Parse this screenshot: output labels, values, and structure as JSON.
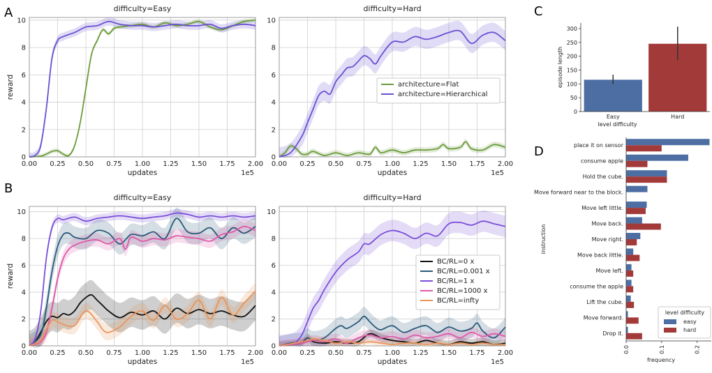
{
  "panel_letters": [
    "A",
    "B",
    "C",
    "D"
  ],
  "colors": {
    "flat": "#6a9a3a",
    "hier": "#6a4fd3",
    "bc0": "#111111",
    "bc0001": "#2a5a7a",
    "bc1": "#7a4fd8",
    "bc1000": "#de5aa8",
    "bcinf": "#e8955a",
    "easy": "#4c6ea3",
    "hard": "#a33a3a"
  },
  "chart_data": [
    {
      "id": "A-easy",
      "type": "line",
      "title": "difficulty=Easy",
      "xlabel": "updates",
      "ylabel": "reward",
      "x_scale_note": "1e5",
      "xlim": [
        0,
        2.0
      ],
      "ylim": [
        0,
        10.2
      ],
      "xticks": [
        "0.00",
        "0.25",
        "0.50",
        "0.75",
        "1.00",
        "1.25",
        "1.50",
        "1.75",
        "2.00"
      ],
      "yticks": [
        "0",
        "2",
        "4",
        "6",
        "8",
        "10"
      ],
      "series": [
        {
          "name": "architecture=Flat",
          "color_key": "flat",
          "band": 0.15,
          "x": [
            0,
            0.1,
            0.15,
            0.2,
            0.25,
            0.3,
            0.35,
            0.4,
            0.45,
            0.5,
            0.55,
            0.6,
            0.65,
            0.7,
            0.75,
            0.8,
            0.9,
            1.0,
            1.1,
            1.2,
            1.3,
            1.4,
            1.5,
            1.6,
            1.7,
            1.8,
            1.9,
            2.0
          ],
          "y": [
            0,
            0.05,
            0.2,
            0.4,
            0.45,
            0.2,
            0.1,
            0.8,
            2.5,
            5.0,
            7.5,
            8.5,
            9.3,
            9.0,
            9.4,
            9.5,
            9.6,
            9.7,
            9.5,
            9.8,
            9.6,
            9.7,
            9.9,
            9.5,
            9.3,
            9.6,
            9.9,
            10.0
          ]
        },
        {
          "name": "architecture=Hierarchical",
          "color_key": "hier",
          "band": 0.3,
          "x": [
            0,
            0.05,
            0.1,
            0.15,
            0.2,
            0.25,
            0.3,
            0.4,
            0.5,
            0.6,
            0.7,
            0.8,
            0.9,
            1.0,
            1.1,
            1.2,
            1.3,
            1.4,
            1.5,
            1.6,
            1.7,
            1.8,
            1.9,
            2.0
          ],
          "y": [
            0,
            0.1,
            0.8,
            3.5,
            7.2,
            8.5,
            8.8,
            9.1,
            9.5,
            9.6,
            9.9,
            9.7,
            9.6,
            9.6,
            9.5,
            9.6,
            9.7,
            9.6,
            9.6,
            9.7,
            9.4,
            9.6,
            9.7,
            9.6
          ]
        }
      ]
    },
    {
      "id": "A-hard",
      "type": "line",
      "title": "difficulty=Hard",
      "xlabel": "updates",
      "ylabel": "",
      "x_scale_note": "1e5",
      "xlim": [
        0,
        2.0
      ],
      "ylim": [
        0,
        10.2
      ],
      "xticks": [
        "0.00",
        "0.25",
        "0.50",
        "0.75",
        "1.00",
        "1.25",
        "1.50",
        "1.75",
        "2.00"
      ],
      "yticks": [
        "0",
        "2",
        "4",
        "6",
        "8",
        "10"
      ],
      "legend": {
        "placement": "center-right",
        "entries": [
          "architecture=Flat",
          "architecture=Hierarchical"
        ]
      },
      "series": [
        {
          "name": "architecture=Flat",
          "color_key": "flat",
          "band": 0.2,
          "x": [
            0,
            0.05,
            0.1,
            0.15,
            0.2,
            0.25,
            0.3,
            0.4,
            0.5,
            0.6,
            0.7,
            0.8,
            0.85,
            0.9,
            1.0,
            1.1,
            1.2,
            1.3,
            1.4,
            1.45,
            1.5,
            1.6,
            1.65,
            1.7,
            1.8,
            1.9,
            2.0
          ],
          "y": [
            0,
            0.3,
            0.8,
            0.6,
            0.2,
            0.2,
            0.4,
            0.1,
            0.3,
            0.1,
            0.3,
            0.2,
            0.7,
            0.3,
            0.5,
            0.3,
            0.5,
            0.5,
            0.6,
            0.9,
            0.6,
            0.7,
            1.1,
            0.6,
            0.5,
            0.9,
            0.7
          ]
        },
        {
          "name": "architecture=Hierarchical",
          "color_key": "hier",
          "band": 0.7,
          "x": [
            0,
            0.1,
            0.2,
            0.25,
            0.3,
            0.35,
            0.4,
            0.45,
            0.5,
            0.55,
            0.6,
            0.65,
            0.7,
            0.75,
            0.8,
            0.85,
            0.9,
            1.0,
            1.1,
            1.2,
            1.3,
            1.4,
            1.5,
            1.6,
            1.7,
            1.8,
            1.9,
            2.0
          ],
          "y": [
            0,
            0.3,
            1.5,
            2.5,
            3.5,
            4.5,
            4.8,
            4.6,
            5.5,
            6.0,
            6.5,
            6.6,
            7.0,
            7.4,
            7.2,
            6.8,
            7.4,
            8.4,
            8.4,
            8.8,
            8.6,
            8.8,
            9.1,
            9.2,
            8.3,
            8.9,
            9.1,
            8.5
          ]
        }
      ]
    },
    {
      "id": "B-easy",
      "type": "line",
      "title": "difficulty=Easy",
      "xlabel": "updates",
      "ylabel": "reward",
      "x_scale_note": "1e5",
      "xlim": [
        0,
        2.0
      ],
      "ylim": [
        0,
        10.4
      ],
      "xticks": [
        "0.00",
        "0.25",
        "0.50",
        "0.75",
        "1.00",
        "1.25",
        "1.50",
        "1.75",
        "2.00"
      ],
      "yticks": [
        "0",
        "2",
        "4",
        "6",
        "8",
        "10"
      ],
      "series": [
        {
          "name": "BC/RL=0 x",
          "color_key": "bc0",
          "band": 1.1,
          "x": [
            0,
            0.05,
            0.1,
            0.15,
            0.2,
            0.25,
            0.3,
            0.35,
            0.4,
            0.45,
            0.5,
            0.55,
            0.6,
            0.65,
            0.7,
            0.8,
            0.9,
            1.0,
            1.1,
            1.2,
            1.3,
            1.4,
            1.5,
            1.6,
            1.7,
            1.8,
            1.9,
            2.0
          ],
          "y": [
            0,
            0.3,
            1.0,
            1.8,
            2.2,
            2.1,
            2.4,
            2.3,
            2.6,
            3.2,
            3.6,
            3.8,
            3.4,
            3.0,
            2.6,
            2.1,
            2.5,
            2.3,
            2.6,
            2.0,
            2.8,
            2.4,
            2.7,
            2.4,
            2.6,
            2.3,
            2.2,
            3.0
          ]
        },
        {
          "name": "BC/RL=0.001 x",
          "color_key": "bc0001",
          "band": 0.8,
          "x": [
            0,
            0.1,
            0.15,
            0.2,
            0.25,
            0.3,
            0.35,
            0.4,
            0.5,
            0.6,
            0.7,
            0.8,
            0.9,
            1.0,
            1.1,
            1.2,
            1.3,
            1.4,
            1.5,
            1.6,
            1.7,
            1.8,
            1.9,
            2.0
          ],
          "y": [
            0,
            0.8,
            2.8,
            5.5,
            7.4,
            8.3,
            8.4,
            8.1,
            8.0,
            8.6,
            8.4,
            7.6,
            8.3,
            8.2,
            8.5,
            8.0,
            9.5,
            8.5,
            8.4,
            8.8,
            8.0,
            8.8,
            8.4,
            8.9
          ]
        },
        {
          "name": "BC/RL=1 x",
          "color_key": "bc1",
          "band": 0.3,
          "x": [
            0,
            0.05,
            0.1,
            0.15,
            0.2,
            0.25,
            0.3,
            0.4,
            0.5,
            0.6,
            0.7,
            0.8,
            0.9,
            1.0,
            1.1,
            1.2,
            1.3,
            1.4,
            1.5,
            1.6,
            1.7,
            1.8,
            1.9,
            2.0
          ],
          "y": [
            0,
            0.5,
            2.5,
            6.5,
            8.8,
            9.5,
            9.4,
            9.6,
            9.3,
            9.5,
            9.6,
            9.7,
            9.6,
            9.5,
            9.6,
            9.7,
            9.9,
            9.8,
            9.6,
            9.7,
            9.6,
            9.7,
            9.6,
            9.7
          ]
        },
        {
          "name": "BC/RL=1000 x",
          "color_key": "bc1000",
          "band": 0.5,
          "x": [
            0,
            0.1,
            0.15,
            0.2,
            0.25,
            0.3,
            0.35,
            0.4,
            0.5,
            0.6,
            0.7,
            0.8,
            0.85,
            0.9,
            1.0,
            1.1,
            1.2,
            1.3,
            1.4,
            1.5,
            1.6,
            1.7,
            1.8,
            1.9,
            2.0
          ],
          "y": [
            0,
            0.3,
            1.0,
            2.8,
            5.0,
            6.5,
            7.2,
            7.5,
            7.8,
            7.9,
            7.6,
            8.0,
            7.2,
            8.1,
            7.8,
            8.0,
            7.9,
            8.2,
            8.1,
            8.0,
            7.8,
            8.3,
            8.5,
            8.9,
            8.6
          ]
        },
        {
          "name": "BC/RL=infty",
          "color_key": "bcinf",
          "band": 0.6,
          "x": [
            0,
            0.1,
            0.15,
            0.2,
            0.25,
            0.3,
            0.4,
            0.5,
            0.6,
            0.65,
            0.7,
            0.8,
            0.9,
            1.0,
            1.1,
            1.2,
            1.3,
            1.4,
            1.5,
            1.6,
            1.7,
            1.8,
            1.9,
            2.0
          ],
          "y": [
            0,
            0.4,
            1.2,
            1.9,
            1.8,
            1.6,
            1.5,
            2.6,
            1.8,
            1.2,
            1.0,
            1.4,
            2.2,
            2.6,
            1.9,
            3.0,
            2.0,
            2.4,
            3.4,
            2.0,
            3.6,
            2.3,
            3.2,
            4.1
          ]
        }
      ]
    },
    {
      "id": "B-hard",
      "type": "line",
      "title": "difficulty=Hard",
      "xlabel": "updates",
      "ylabel": "",
      "x_scale_note": "1e5",
      "xlim": [
        0,
        2.0
      ],
      "ylim": [
        0,
        10.4
      ],
      "xticks": [
        "0.00",
        "0.25",
        "0.50",
        "0.75",
        "1.00",
        "1.25",
        "1.50",
        "1.75",
        "2.00"
      ],
      "yticks": [
        "0",
        "2",
        "4",
        "6",
        "8",
        "10"
      ],
      "legend": {
        "placement": "center-right",
        "entries": [
          "BC/RL=0 x",
          "BC/RL=0.001 x",
          "BC/RL=1 x",
          "BC/RL=1000 x",
          "BC/RL=infty"
        ]
      },
      "series": [
        {
          "name": "BC/RL=0 x",
          "color_key": "bc0",
          "band": 0.3,
          "x": [
            0,
            0.1,
            0.2,
            0.25,
            0.3,
            0.4,
            0.5,
            0.6,
            0.7,
            0.8,
            0.9,
            1.0,
            1.1,
            1.2,
            1.3,
            1.4,
            1.5,
            1.6,
            1.7,
            1.8,
            1.9,
            2.0
          ],
          "y": [
            0,
            0.1,
            0.2,
            0.6,
            0.3,
            0.2,
            0.3,
            0.2,
            0.3,
            0.9,
            0.6,
            0.4,
            0.3,
            0.2,
            0.4,
            0.2,
            0.1,
            0.3,
            0.2,
            0.3,
            0.1,
            0.2
          ]
        },
        {
          "name": "BC/RL=0.001 x",
          "color_key": "bc0001",
          "band": 0.7,
          "x": [
            0,
            0.1,
            0.2,
            0.25,
            0.3,
            0.4,
            0.5,
            0.55,
            0.6,
            0.7,
            0.75,
            0.8,
            0.85,
            0.9,
            1.0,
            1.1,
            1.2,
            1.3,
            1.4,
            1.5,
            1.6,
            1.7,
            1.75,
            1.8,
            1.9,
            2.0
          ],
          "y": [
            0,
            0.2,
            0.3,
            0.6,
            0.4,
            0.6,
            1.3,
            1.5,
            1.3,
            1.8,
            2.2,
            1.8,
            1.4,
            1.2,
            1.5,
            1.0,
            1.3,
            1.5,
            1.0,
            1.4,
            1.1,
            1.3,
            1.7,
            1.1,
            0.6,
            1.4
          ]
        },
        {
          "name": "BC/RL=1 x",
          "color_key": "bc1",
          "band": 0.8,
          "x": [
            0,
            0.1,
            0.15,
            0.2,
            0.25,
            0.3,
            0.35,
            0.4,
            0.5,
            0.6,
            0.7,
            0.75,
            0.8,
            0.9,
            1.0,
            1.1,
            1.2,
            1.3,
            1.4,
            1.5,
            1.6,
            1.7,
            1.8,
            1.9,
            2.0
          ],
          "y": [
            0,
            0.1,
            0.3,
            0.8,
            1.8,
            2.8,
            3.4,
            4.2,
            5.5,
            6.4,
            7.0,
            7.6,
            7.6,
            8.3,
            8.6,
            8.4,
            8.0,
            8.4,
            8.2,
            9.1,
            9.2,
            9.0,
            9.3,
            9.1,
            8.9
          ]
        },
        {
          "name": "BC/RL=1000 x",
          "color_key": "bc1000",
          "band": 0.4,
          "x": [
            0,
            0.2,
            0.3,
            0.4,
            0.5,
            0.6,
            0.7,
            0.8,
            0.9,
            1.0,
            1.1,
            1.2,
            1.3,
            1.4,
            1.5,
            1.6,
            1.7,
            1.8,
            1.9,
            2.0
          ],
          "y": [
            0,
            0.2,
            0.4,
            0.3,
            0.5,
            0.2,
            0.6,
            0.8,
            0.6,
            0.7,
            0.5,
            0.8,
            0.6,
            0.7,
            0.9,
            0.6,
            1.0,
            0.7,
            0.9,
            0.7
          ]
        },
        {
          "name": "BC/RL=infty",
          "color_key": "bcinf",
          "band": 0.2,
          "x": [
            0,
            0.2,
            0.3,
            0.4,
            0.5,
            0.6,
            0.7,
            0.8,
            0.9,
            1.0,
            1.1,
            1.2,
            1.3,
            1.4,
            1.5,
            1.6,
            1.7,
            1.8,
            1.9,
            2.0
          ],
          "y": [
            0,
            0.3,
            0.5,
            0.4,
            0.2,
            0.3,
            0.2,
            0.3,
            0.2,
            0.1,
            0.2,
            0.2,
            0.1,
            0.2,
            0.1,
            0.2,
            0.1,
            0.2,
            0.1,
            0.1
          ]
        }
      ]
    },
    {
      "id": "C",
      "type": "bar",
      "title": "",
      "xlabel": "level difficulty",
      "ylabel": "episode length",
      "categories": [
        "Easy",
        "Hard"
      ],
      "values": [
        115,
        245
      ],
      "error": [
        [
          100,
          133
        ],
        [
          185,
          307
        ]
      ],
      "ylim": [
        0,
        320
      ],
      "yticks": [
        "0",
        "50",
        "100",
        "150",
        "200",
        "250",
        "300"
      ],
      "color_keys": [
        "easy",
        "hard"
      ]
    },
    {
      "id": "D",
      "type": "bar",
      "orientation": "horizontal",
      "xlabel": "frequency",
      "ylabel": "instruction",
      "xlim": [
        0,
        0.24
      ],
      "xticks": [
        "0.0",
        "0.1",
        "0.2"
      ],
      "categories": [
        "place it on sensor",
        "consume apple",
        "Hold the cube.",
        "Move forward near to the block.",
        "Move left little.",
        "Move back.",
        "Move right.",
        "Move back little.",
        "Move left.",
        "consume the apple",
        "Lift the cube.",
        "Move forward.",
        "Drop it."
      ],
      "series": [
        {
          "name": "easy",
          "color_key": "easy",
          "values": [
            0.235,
            0.175,
            0.115,
            0.06,
            0.058,
            0.045,
            0.04,
            0.02,
            0.015,
            0.015,
            0.013,
            0.005,
            0.005
          ]
        },
        {
          "name": "hard",
          "color_key": "hard",
          "values": [
            0.1,
            0.06,
            0.115,
            0.0,
            0.055,
            0.098,
            0.03,
            0.038,
            0.02,
            0.02,
            0.022,
            0.035,
            0.045
          ]
        }
      ],
      "legend": {
        "title": "level difficulty",
        "placement": "lower-right",
        "entries": [
          "easy",
          "hard"
        ]
      }
    }
  ]
}
